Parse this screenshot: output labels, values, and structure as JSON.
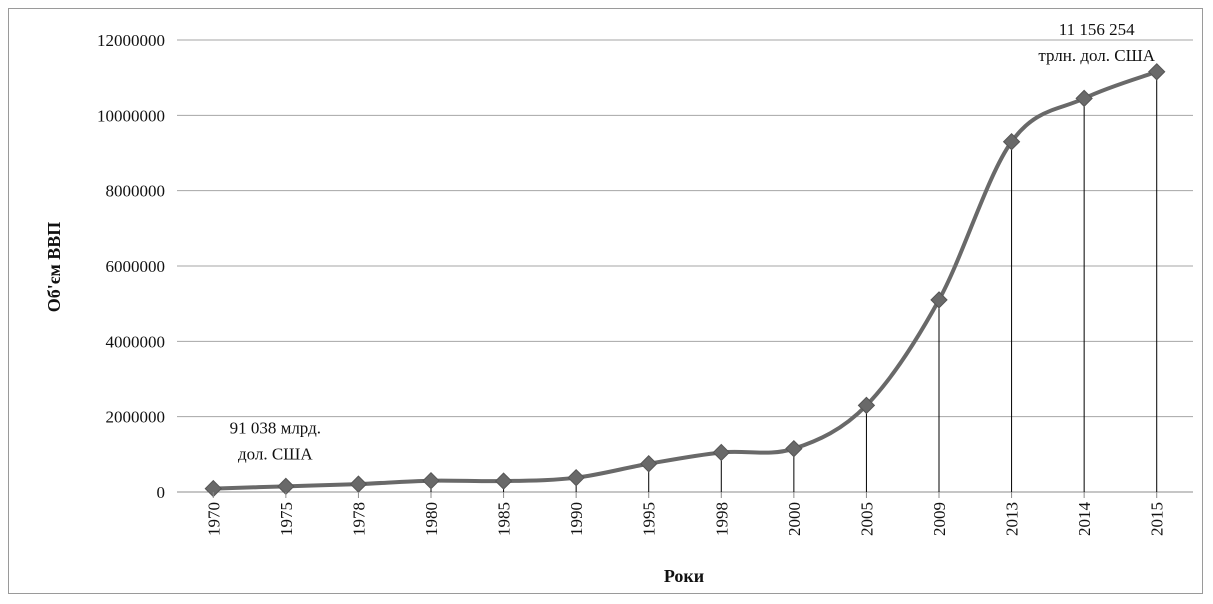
{
  "chart_data": {
    "type": "line",
    "xlabel": "Роки",
    "ylabel": "Об'єм ВВП",
    "categories": [
      "1970",
      "1975",
      "1978",
      "1980",
      "1985",
      "1990",
      "1995",
      "1998",
      "2000",
      "2005",
      "2009",
      "2013",
      "2014",
      "2015"
    ],
    "series": [
      {
        "values": [
          91038,
          150000,
          210000,
          300000,
          290000,
          380000,
          750000,
          1050000,
          1150000,
          2300000,
          5100000,
          9300000,
          10450000,
          11156254
        ],
        "color": "#696969",
        "marker": "diamond"
      }
    ],
    "ylim": [
      0,
      12000000
    ],
    "yticks": [
      "0",
      "2000000",
      "4000000",
      "6000000",
      "8000000",
      "10000000",
      "12000000"
    ],
    "grid": "horizontal",
    "drop_lines": true,
    "smooth": true,
    "annotations": [
      {
        "point": 0,
        "lines": [
          "91 038 млрд.",
          "дол. США"
        ]
      },
      {
        "point": 13,
        "lines": [
          "11 156 254",
          "трлн. дол. США"
        ]
      }
    ]
  }
}
